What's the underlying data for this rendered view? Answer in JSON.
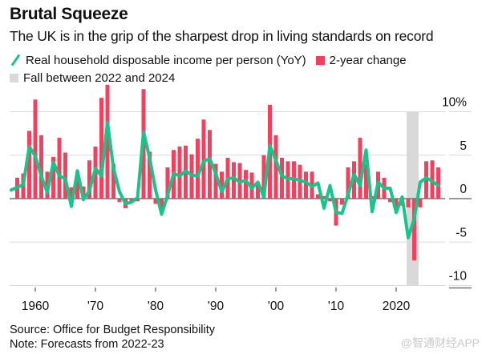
{
  "header": {
    "title": "Brutal Squeeze",
    "subtitle": "The UK is in the grip of the sharpest drop in living standards on record"
  },
  "legend": {
    "items": [
      {
        "label": "Real household disposable income per person (YoY)",
        "kind": "line",
        "color": "#18c48a"
      },
      {
        "label": "2-year change",
        "kind": "bar",
        "color": "#f2405e"
      },
      {
        "label": "Fall between 2022 and 2024",
        "kind": "band",
        "color": "#d9d9d9"
      }
    ]
  },
  "footer": {
    "source": "Source: Office for Budget Responsibility",
    "note": "Note: Forecasts from 2022-23",
    "watermark": "@智通财经APP"
  },
  "chart_data": {
    "type": "bar",
    "title": "Brutal Squeeze",
    "subtitle": "The UK is in the grip of the sharpest drop in living standards on record",
    "xlabel": "",
    "ylabel": "",
    "ylim": [
      -10,
      10
    ],
    "yticks": [
      10,
      5,
      0,
      -5,
      -10
    ],
    "ytick_labels": [
      "10%",
      "5",
      "0",
      "-5",
      "-10"
    ],
    "xticks": [
      1960,
      1970,
      1980,
      1990,
      2000,
      2010,
      2020
    ],
    "xtick_labels": [
      "1960",
      "'70",
      "'80",
      "'90",
      "'00",
      "'10",
      "2020"
    ],
    "xlim": [
      1956,
      2027
    ],
    "grid": true,
    "legend_position": "top-left",
    "shaded_band": {
      "label": "Fall between 2022 and 2024",
      "x_start": 2022,
      "x_end": 2024,
      "color": "#d9d9d9"
    },
    "series": [
      {
        "name": "2-year change",
        "type": "bar",
        "color": "#f2405e",
        "x": [
          1957,
          1958,
          1959,
          1960,
          1961,
          1962,
          1963,
          1964,
          1965,
          1966,
          1967,
          1968,
          1969,
          1970,
          1971,
          1972,
          1973,
          1974,
          1975,
          1976,
          1977,
          1978,
          1979,
          1980,
          1981,
          1982,
          1983,
          1984,
          1985,
          1986,
          1987,
          1988,
          1989,
          1990,
          1991,
          1992,
          1993,
          1994,
          1995,
          1996,
          1997,
          1998,
          1999,
          2000,
          2001,
          2002,
          2003,
          2004,
          2005,
          2006,
          2007,
          2008,
          2009,
          2010,
          2011,
          2012,
          2013,
          2014,
          2015,
          2016,
          2017,
          2018,
          2019,
          2020,
          2021,
          2022,
          2023,
          2024,
          2025,
          2026,
          2027
        ],
        "values": [
          2.4,
          2.9,
          7.8,
          11.4,
          7.3,
          3.1,
          4.8,
          7.0,
          5.3,
          1.3,
          3.1,
          1.4,
          4.4,
          6.0,
          11.6,
          13.1,
          4.0,
          -0.4,
          -1.1,
          -0.4,
          -0.3,
          12.6,
          5.4,
          -0.6,
          -1.3,
          3.6,
          5.6,
          6.0,
          6.1,
          5.1,
          6.9,
          9.1,
          7.9,
          4.0,
          3.1,
          4.7,
          4.2,
          4.1,
          3.3,
          3.0,
          1.9,
          5.0,
          10.8,
          7.3,
          4.7,
          4.3,
          4.3,
          3.9,
          3.1,
          3.1,
          0.5,
          0.3,
          -0.3,
          -3.1,
          -0.7,
          3.6,
          4.3,
          7.0,
          4.0,
          0.3,
          3.1,
          2.4,
          -0.4,
          -1.3,
          -0.8,
          -1.0,
          -7.1,
          -1.0,
          4.3,
          4.4,
          3.6
        ]
      },
      {
        "name": "Real household disposable income per person (YoY)",
        "type": "line",
        "color": "#18c48a",
        "x": [
          1956,
          1957,
          1958,
          1959,
          1960,
          1961,
          1962,
          1963,
          1964,
          1965,
          1966,
          1967,
          1968,
          1969,
          1970,
          1971,
          1972,
          1973,
          1974,
          1975,
          1976,
          1977,
          1978,
          1979,
          1980,
          1981,
          1982,
          1983,
          1984,
          1985,
          1986,
          1987,
          1988,
          1989,
          1990,
          1991,
          1992,
          1993,
          1994,
          1995,
          1996,
          1997,
          1998,
          1999,
          2000,
          2001,
          2002,
          2003,
          2004,
          2005,
          2006,
          2007,
          2008,
          2009,
          2010,
          2011,
          2012,
          2013,
          2014,
          2015,
          2016,
          2017,
          2018,
          2019,
          2020,
          2021,
          2022,
          2023,
          2024,
          2025,
          2026,
          2027
        ],
        "values": [
          1.0,
          1.3,
          1.6,
          6.0,
          4.9,
          2.6,
          0.7,
          4.2,
          2.6,
          2.3,
          -0.9,
          3.2,
          -0.1,
          0.9,
          3.5,
          2.6,
          8.8,
          3.5,
          0.8,
          -0.6,
          -0.4,
          0.1,
          7.7,
          4.7,
          1.0,
          -1.8,
          0.4,
          2.9,
          2.6,
          3.2,
          2.7,
          2.6,
          4.3,
          4.6,
          2.9,
          0.8,
          2.3,
          2.4,
          1.9,
          2.1,
          1.2,
          1.9,
          0.2,
          6.1,
          4.4,
          2.6,
          2.3,
          2.3,
          2.1,
          1.9,
          1.4,
          1.8,
          -1.1,
          1.5,
          -1.6,
          -1.7,
          0.5,
          2.8,
          1.5,
          5.6,
          -1.5,
          1.9,
          1.2,
          1.2,
          -1.6,
          0.2,
          -4.5,
          -2.3,
          1.9,
          2.4,
          2.0,
          1.5
        ]
      }
    ]
  }
}
